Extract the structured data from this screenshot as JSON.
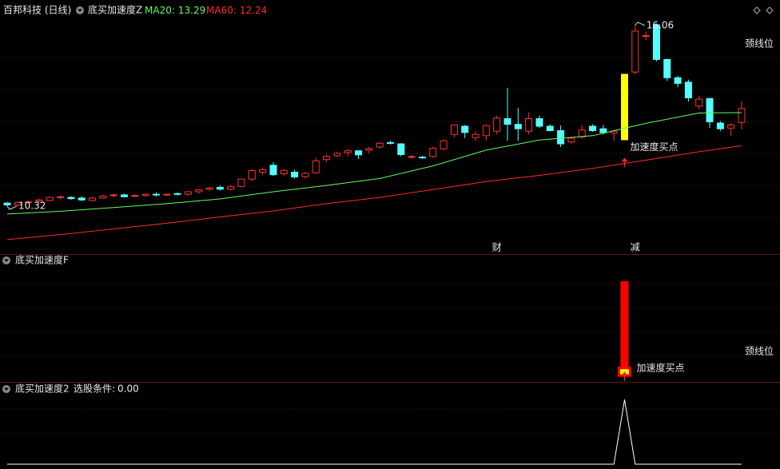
{
  "chart_data": [
    {
      "type": "candlestick",
      "title": "百邦科技 (日线)",
      "indicator": "底买加速度Z",
      "xlim": [
        0,
        69
      ],
      "ylim": [
        8.8,
        16.31
      ],
      "open": [
        10.42,
        10.36,
        10.44,
        10.48,
        10.5,
        10.6,
        10.6,
        10.58,
        10.5,
        10.58,
        10.66,
        10.68,
        10.64,
        10.66,
        10.7,
        10.68,
        10.72,
        10.7,
        10.78,
        10.86,
        10.92,
        10.86,
        10.95,
        11.18,
        11.4,
        11.62,
        11.35,
        11.4,
        11.26,
        11.38,
        11.8,
        11.92,
        12.02,
        12.08,
        12.1,
        12.2,
        12.34,
        12.3,
        11.88,
        11.88,
        11.9,
        12.14,
        12.6,
        12.86,
        12.5,
        12.56,
        12.7,
        13.1,
        12.92,
        12.7,
        13.1,
        12.86,
        12.72,
        12.36,
        12.52,
        12.86,
        12.78,
        12.64,
        12.43,
        14.58,
        15.72,
        16.08,
        14.98,
        14.4,
        14.26,
        13.5,
        13.74,
        12.96,
        12.8,
        12.98
      ],
      "high": [
        10.46,
        10.48,
        10.5,
        10.56,
        10.62,
        10.66,
        10.64,
        10.64,
        10.62,
        10.68,
        10.72,
        10.72,
        10.7,
        10.72,
        10.76,
        10.72,
        10.76,
        10.8,
        10.86,
        10.94,
        10.98,
        10.98,
        11.2,
        11.5,
        11.55,
        11.72,
        11.5,
        11.48,
        11.42,
        11.86,
        11.96,
        12.04,
        12.14,
        12.1,
        12.2,
        12.36,
        12.4,
        12.32,
        11.95,
        11.92,
        12.2,
        12.44,
        12.92,
        12.9,
        12.7,
        12.92,
        13.2,
        14.08,
        13.44,
        13.3,
        13.2,
        12.92,
        12.88,
        12.52,
        12.9,
        12.92,
        12.9,
        12.76,
        14.51,
        16.06,
        15.86,
        16.12,
        15.0,
        14.46,
        14.34,
        13.82,
        13.76,
        13.02,
        12.96,
        13.66
      ],
      "low": [
        10.32,
        10.33,
        10.4,
        10.44,
        10.48,
        10.54,
        10.52,
        10.48,
        10.48,
        10.55,
        10.6,
        10.6,
        10.6,
        10.62,
        10.62,
        10.64,
        10.66,
        10.66,
        10.72,
        10.8,
        10.82,
        10.82,
        10.92,
        11.12,
        11.3,
        11.28,
        11.28,
        11.2,
        11.2,
        11.34,
        11.72,
        11.88,
        11.9,
        11.82,
        12.0,
        12.15,
        12.28,
        11.9,
        11.82,
        11.82,
        11.86,
        12.1,
        12.5,
        12.48,
        12.4,
        12.4,
        12.6,
        12.4,
        12.4,
        12.6,
        12.8,
        12.7,
        12.2,
        12.3,
        12.46,
        12.68,
        12.6,
        12.4,
        12.42,
        14.5,
        15.6,
        14.92,
        14.3,
        14.1,
        13.64,
        13.4,
        12.8,
        12.7,
        12.56,
        12.76
      ],
      "close": [
        10.36,
        10.44,
        10.46,
        10.52,
        10.6,
        10.62,
        10.56,
        10.52,
        10.58,
        10.64,
        10.68,
        10.62,
        10.66,
        10.7,
        10.68,
        10.7,
        10.7,
        10.78,
        10.84,
        10.9,
        10.86,
        10.94,
        11.18,
        11.45,
        11.48,
        11.32,
        11.46,
        11.25,
        11.36,
        11.76,
        11.9,
        12.0,
        12.08,
        11.95,
        12.15,
        12.32,
        12.32,
        11.96,
        11.9,
        11.86,
        12.16,
        12.4,
        12.9,
        12.66,
        12.6,
        12.88,
        13.12,
        12.92,
        12.78,
        13.1,
        12.86,
        12.72,
        12.3,
        12.48,
        12.74,
        12.72,
        12.66,
        12.7,
        14.51,
        15.88,
        15.74,
        14.98,
        14.4,
        14.22,
        13.76,
        13.72,
        13.0,
        12.78,
        12.9,
        13.42
      ],
      "up_color": "#ff3232",
      "down_color": "#54ffff",
      "highlight_index": 58,
      "highlight_color": "#ffff00",
      "max_index": 59,
      "min_index": 0,
      "series": [
        {
          "name": "MA20:",
          "color": "#5cff5c",
          "x": [
            0,
            5,
            10,
            15,
            20,
            25,
            30,
            35,
            40,
            45,
            50,
            55,
            60,
            65,
            69
          ],
          "values": [
            10.07,
            10.16,
            10.28,
            10.4,
            10.55,
            10.78,
            10.98,
            11.2,
            11.6,
            12.1,
            12.42,
            12.56,
            12.95,
            13.28,
            13.29
          ]
        },
        {
          "name": "MA60:",
          "color": "#ff2a2a",
          "x": [
            0,
            5,
            10,
            15,
            20,
            25,
            30,
            35,
            40,
            45,
            50,
            55,
            60,
            65,
            69
          ],
          "values": [
            9.26,
            9.42,
            9.6,
            9.78,
            9.98,
            10.17,
            10.4,
            10.6,
            10.85,
            11.1,
            11.3,
            11.52,
            11.78,
            12.05,
            12.24
          ]
        }
      ],
      "annotation": "颈线位",
      "buy_signal": {
        "x": 58,
        "text": "加速度买点",
        "color": "#ffff00",
        "arrow_color": "#ff2020"
      },
      "events": [
        {
          "x": 46,
          "text": "财",
          "color": "#7fbfff"
        },
        {
          "x": 59,
          "text": "减",
          "color": "#5cff5c"
        }
      ]
    },
    {
      "type": "bar",
      "title": "底买加速度F",
      "xlim": [
        0,
        69
      ],
      "ylim": [
        0,
        110
      ],
      "x": [
        58
      ],
      "values": [
        100
      ],
      "color": "#ff0000",
      "base": {
        "value": 8,
        "color": "#ffff00"
      },
      "annotation": "颈线位",
      "buy_signal": {
        "x": 58,
        "text": "加速度买点",
        "color": "#ffff00",
        "arrow_color": "#ff2020"
      }
    },
    {
      "type": "line",
      "title": "底买加速度2",
      "condition_label": "选股条件:",
      "condition_value": 0,
      "condition_value_label": "0.00",
      "xlim": [
        0,
        69
      ],
      "ylim": [
        0,
        1.1
      ],
      "x": [
        0,
        57,
        58,
        59,
        69
      ],
      "values": [
        0,
        0,
        1,
        0,
        0
      ],
      "color": "#ffffff"
    }
  ]
}
